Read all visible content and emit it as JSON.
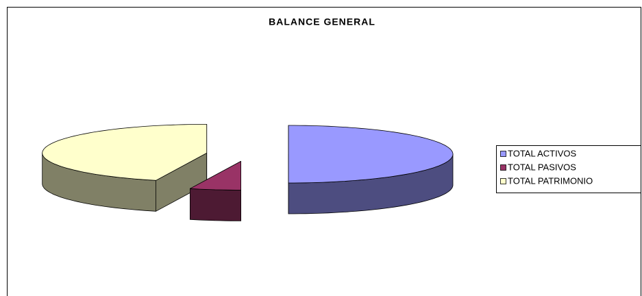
{
  "chart_data": {
    "type": "pie",
    "title": "BALANCE GENERAL",
    "categories": [
      "TOTAL ACTIVOS",
      "TOTAL PASIVOS",
      "TOTAL PATRIMONIO"
    ],
    "values": [
      50,
      5,
      45
    ],
    "colors": [
      "#9999ff",
      "#993366",
      "#ffffcc"
    ],
    "legend": "right"
  }
}
